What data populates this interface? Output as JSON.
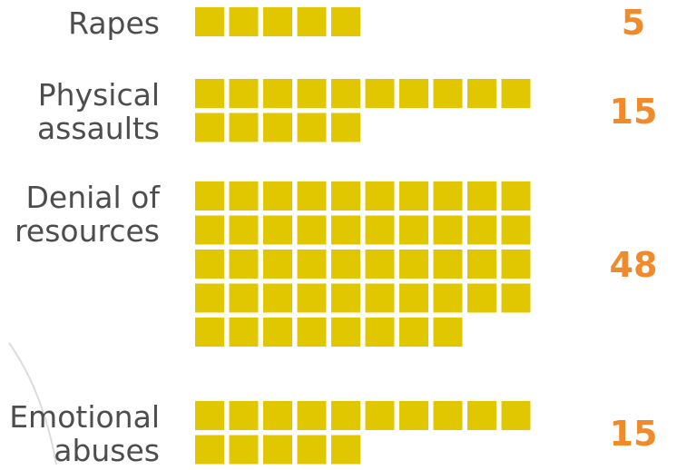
{
  "chart_data": {
    "type": "bar",
    "categories": [
      [
        "Rapes"
      ],
      [
        "Physical",
        "assaults"
      ],
      [
        "Denial of",
        "resources"
      ],
      [
        "Emotional",
        "abuses"
      ]
    ],
    "values": [
      5,
      15,
      48,
      15
    ],
    "value_labels": [
      "5",
      "15",
      "48",
      "15"
    ],
    "units_per_row": 10,
    "colors": {
      "square": "#e0c700",
      "value": "#f08a2b",
      "label": "#4d4d4d"
    }
  }
}
